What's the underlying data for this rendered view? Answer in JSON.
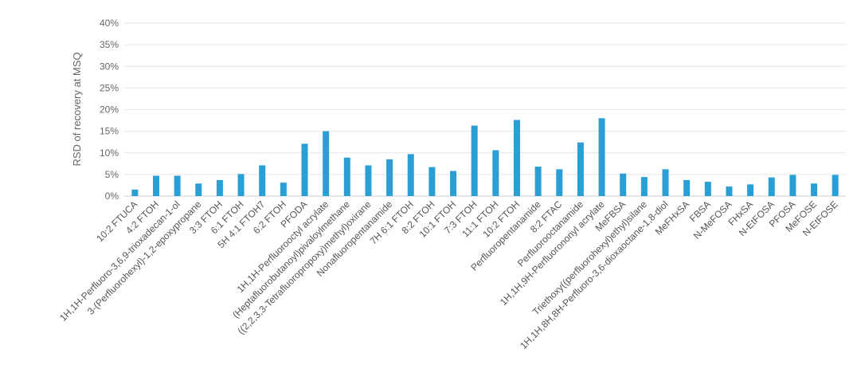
{
  "chart_data": {
    "type": "bar",
    "title": "",
    "xlabel": "",
    "ylabel": "RSD of recovery at MSQ",
    "ylim": [
      0,
      40
    ],
    "y_ticks": [
      "0%",
      "5%",
      "10%",
      "15%",
      "20%",
      "25%",
      "30%",
      "35%",
      "40%"
    ],
    "grid": true,
    "legend": "none",
    "bar_color": "#2a9fd6",
    "categories": [
      "10:2 FTUCA",
      "4:2 FTOH",
      "1H,1H-Perfluoro-3,6,9-trioxadecan-1-ol",
      "3-(Perfluorohexyl)-1,2-epoxypropane",
      "3:3 FTOH",
      "6:1 FTOH",
      "5H 4:1 FTOH7",
      "6:2 FTOH",
      "PFODA",
      "1H,1H-Perfluorooctyl acrylate",
      "(Heptafluorobutanoyl)pivaloylmethane",
      "((2,2,3,3-Tetrafluoropropoxy)methyl)oxirane",
      "Nonafluoropentanamide",
      "7H 6:1 FTOH",
      "8:2 FTOH",
      "10:1 FTOH",
      "7:3 FTOH",
      "11:1 FTOH",
      "10:2 FTOH",
      "Perfluoropentanamide",
      "8:2 FTAC",
      "Perfluorooctanamide",
      "1H,1H,9H-Perfluorononyl acrylate",
      "MeFBSA",
      "Triethoxy((perfluorohexyl)ethyl)silane",
      "1H,1H,8H,8H-Perfluoro-3,6-dioxaoctane-1,8-diol",
      "MeFHxSA",
      "FBSA",
      "N-MeFOSA",
      "FHxSA",
      "N-EtFOSA",
      "PFOSA",
      "MeFOSE",
      "N-EtFOSE"
    ],
    "values": [
      1.5,
      4.7,
      4.7,
      2.9,
      3.7,
      5.1,
      7.1,
      3.1,
      12.1,
      15.0,
      8.9,
      7.1,
      8.5,
      9.7,
      6.7,
      5.8,
      16.3,
      10.6,
      17.6,
      6.8,
      6.2,
      12.4,
      18.0,
      5.2,
      4.4,
      6.2,
      3.7,
      3.3,
      2.2,
      2.7,
      4.3,
      4.9,
      2.9,
      4.9
    ]
  }
}
